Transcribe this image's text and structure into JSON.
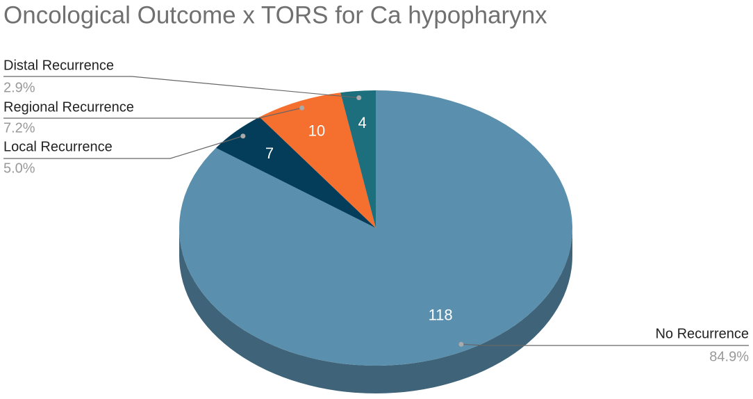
{
  "chart_data": {
    "type": "pie3d",
    "title": "Oncological Outcome x TORS for Ca hypopharynx",
    "categories": [
      "No Recurrence",
      "Local Recurrence",
      "Regional Recurrence",
      "Distal Recurrence"
    ],
    "values": [
      118,
      7,
      10,
      4
    ],
    "percent_labels": [
      "84.9%",
      "5.0%",
      "7.2%",
      "2.9%"
    ],
    "colors": [
      "#5a8fad",
      "#033d5a",
      "#f56f2f",
      "#1d6f7d"
    ]
  }
}
